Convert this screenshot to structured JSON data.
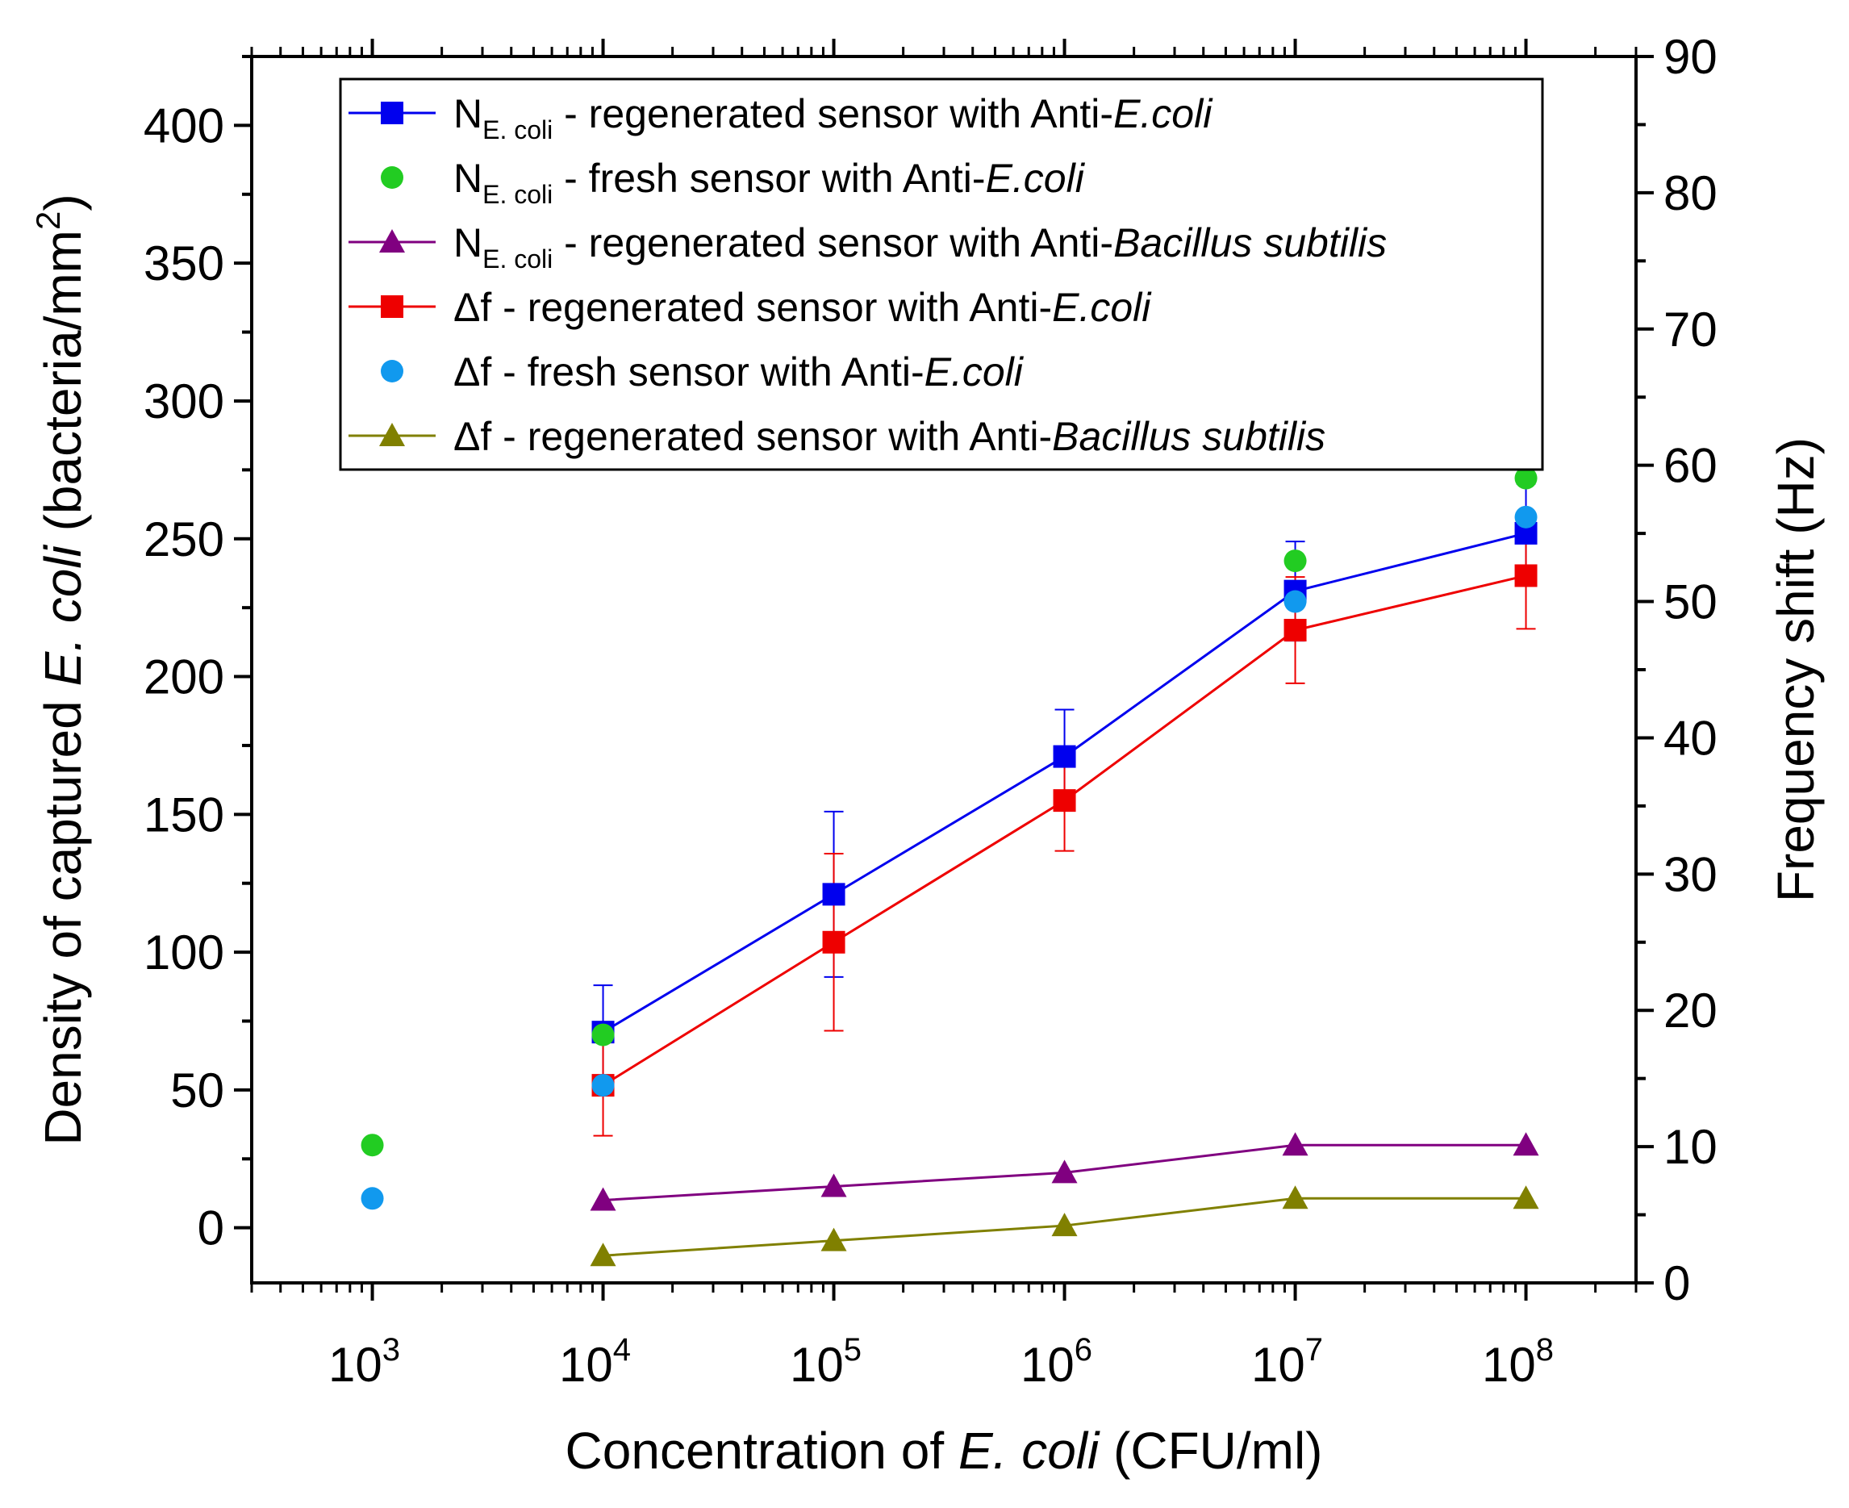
{
  "chart_data": {
    "type": "line",
    "x_scale": "log",
    "xlabel": {
      "prefix": "Concentration of ",
      "italic": "E. coli",
      "suffix": " (CFU/ml)"
    },
    "ylabel": {
      "prefix": "Density of captured ",
      "italic": "E. coli",
      "suffix": " (bacteria/mm",
      "sup": "2",
      "close": ")"
    },
    "y2label": "Frequency shift (Hz)",
    "xlim": [
      300,
      300000000
    ],
    "ylim": [
      -20,
      425
    ],
    "y2lim": [
      0,
      90
    ],
    "x_ticks": [
      {
        "value": 1000,
        "base": "10",
        "exp": "3"
      },
      {
        "value": 10000,
        "base": "10",
        "exp": "4"
      },
      {
        "value": 100000,
        "base": "10",
        "exp": "5"
      },
      {
        "value": 1000000,
        "base": "10",
        "exp": "6"
      },
      {
        "value": 10000000,
        "base": "10",
        "exp": "7"
      },
      {
        "value": 100000000,
        "base": "10",
        "exp": "8"
      }
    ],
    "y_ticks": [
      "0",
      "50",
      "100",
      "150",
      "200",
      "250",
      "300",
      "350",
      "400"
    ],
    "y2_ticks": [
      "0",
      "10",
      "20",
      "30",
      "40",
      "50",
      "60",
      "70",
      "80",
      "90"
    ],
    "series": [
      {
        "name": "N E.coli - regenerated sensor with Anti-E.coli",
        "axis": "left",
        "color": "#0000ee",
        "marker": "square",
        "line": true,
        "x": [
          10000,
          100000,
          1000000,
          10000000,
          100000000
        ],
        "y": [
          71,
          121,
          171,
          231,
          252
        ],
        "err": [
          17,
          30,
          17,
          18,
          18
        ]
      },
      {
        "name": "N E.coli - fresh sensor with Anti-E.coli",
        "axis": "left",
        "color": "#22cc22",
        "marker": "circle",
        "line": false,
        "x": [
          1000,
          10000,
          10000000,
          100000000
        ],
        "y": [
          30,
          70,
          242,
          272
        ]
      },
      {
        "name": "N E.coli - regenerated sensor with Anti-Bacillus subtilis",
        "axis": "left",
        "color": "#800080",
        "marker": "triangle",
        "line": true,
        "x": [
          10000,
          100000,
          1000000,
          10000000,
          100000000
        ],
        "y": [
          10,
          15,
          20,
          30,
          30
        ]
      },
      {
        "name": "Δf - regenerated sensor with Anti-E.coli",
        "axis": "right",
        "color": "#ee0000",
        "marker": "square",
        "line": true,
        "x": [
          10000,
          100000,
          1000000,
          10000000,
          100000000
        ],
        "y": [
          14.5,
          25.0,
          35.4,
          47.9,
          51.9
        ],
        "err": [
          3.7,
          6.5,
          3.7,
          3.9,
          3.9
        ]
      },
      {
        "name": "Δf - fresh sensor with Anti-E.coli",
        "axis": "right",
        "color": "#1199ee",
        "marker": "circle",
        "line": false,
        "x": [
          1000,
          10000,
          10000000,
          100000000
        ],
        "y": [
          6.2,
          14.5,
          50.0,
          56.2
        ]
      },
      {
        "name": "Δf - regenerated sensor with Anti-Bacillus subtilis",
        "axis": "right",
        "color": "#808000",
        "marker": "triangle",
        "line": true,
        "x": [
          10000,
          100000,
          1000000,
          10000000,
          100000000
        ],
        "y": [
          2.0,
          3.1,
          4.2,
          6.2,
          6.2
        ]
      }
    ],
    "legend": {
      "position": "top",
      "entries": [
        {
          "prefix": "N",
          "sub": "E. coli",
          "text": " - regenerated sensor with Anti-",
          "italic": "E.coli"
        },
        {
          "prefix": "N",
          "sub": "E. coli",
          "text": " - fresh sensor with Anti-",
          "italic": "E.coli"
        },
        {
          "prefix": "N",
          "sub": "E. coli",
          "text": " - regenerated sensor with Anti-",
          "italic": "Bacillus subtilis"
        },
        {
          "prefix": "",
          "sub": "",
          "text": "Δf - regenerated sensor with Anti-",
          "italic": "E.coli"
        },
        {
          "prefix": "",
          "sub": "",
          "text": "Δf - fresh sensor with Anti-",
          "italic": "E.coli"
        },
        {
          "prefix": "",
          "sub": "",
          "text": "Δf - regenerated sensor with Anti-",
          "italic": "Bacillus subtilis"
        }
      ]
    }
  }
}
